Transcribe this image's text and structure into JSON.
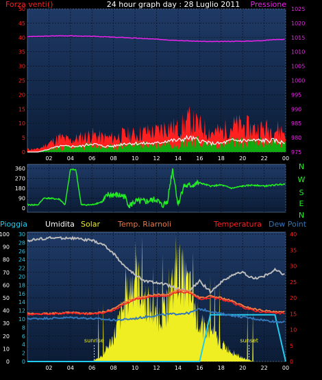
{
  "title": "24 hour graph day : 28 Luglio 2011",
  "colors": {
    "bg": "#000000",
    "plot_top": "#1f3a66",
    "plot_bottom": "#0b1c36",
    "grid": "#000000",
    "red": "#ff2020",
    "white": "#ffffff",
    "green": "#11aa11",
    "magenta": "#ee22ee",
    "brightgreen": "#22ee22",
    "yellow": "#eeee22",
    "gray": "#bbbbbb",
    "orange": "#ee7744",
    "blue": "#3377bb",
    "cyan": "#22ccee",
    "ticks": "#ffffff"
  },
  "time_ticks": [
    "02",
    "04",
    "06",
    "08",
    "10",
    "12",
    "14",
    "16",
    "18",
    "20",
    "22",
    "00"
  ],
  "chart_data": [
    {
      "type": "line",
      "id": "wind-pressure",
      "left_label": "Forza venti()",
      "right_label": "Pressione",
      "left_ticks": [
        "50",
        "45",
        "40",
        "35",
        "30",
        "25",
        "20",
        "15",
        "10",
        "5",
        "0"
      ],
      "right_ticks": [
        "1025",
        "1020",
        "1015",
        "1010",
        "1005",
        "1000",
        "995",
        "990",
        "985",
        "980",
        "975"
      ],
      "ylim_left": [
        0,
        50
      ],
      "ylim_right": [
        975,
        1025
      ],
      "x_hours": [
        0,
        1,
        2,
        3,
        4,
        5,
        6,
        7,
        8,
        9,
        10,
        11,
        12,
        13,
        14,
        15,
        16,
        17,
        18,
        19,
        20,
        21,
        22,
        23,
        24
      ],
      "series": [
        {
          "key": "pressure",
          "axis": "right",
          "values": [
            1015.3,
            1015.4,
            1015.5,
            1015.6,
            1015.6,
            1015.5,
            1015.4,
            1015.3,
            1015.1,
            1015.0,
            1014.8,
            1014.6,
            1014.4,
            1014.2,
            1014.0,
            1013.8,
            1013.7,
            1013.6,
            1013.6,
            1013.7,
            1013.7,
            1013.8,
            1014.0,
            1014.3,
            1014.4
          ]
        },
        {
          "key": "gust",
          "axis": "left",
          "values": [
            1,
            1,
            3,
            5,
            4,
            5,
            6,
            5,
            5,
            6,
            6,
            7,
            7,
            9,
            8,
            11,
            9,
            7,
            7,
            9,
            9,
            8,
            8,
            8,
            7
          ]
        },
        {
          "key": "wind",
          "axis": "left",
          "values": [
            0,
            0,
            1,
            2,
            2,
            2,
            3,
            2,
            2,
            3,
            3,
            3,
            3,
            4,
            4,
            5,
            4,
            3,
            3,
            4,
            4,
            4,
            4,
            4,
            3
          ]
        }
      ]
    },
    {
      "type": "line",
      "id": "wind-direction",
      "compass": [
        "N",
        "W",
        "S",
        "E",
        "N"
      ],
      "y_ticks": [
        "360",
        "270",
        "180",
        "90",
        "0"
      ],
      "ylim": [
        0,
        360
      ],
      "x_hours": [
        0,
        1,
        1.5,
        2,
        3,
        3.5,
        4,
        4.5,
        5,
        5.5,
        6,
        7,
        7.5,
        8,
        9,
        9.5,
        10,
        11,
        12,
        12.5,
        13,
        13.5,
        14,
        14.5,
        15,
        16,
        17,
        18,
        19,
        20,
        21,
        22,
        23,
        24
      ],
      "series": [
        {
          "key": "direction",
          "values": [
            30,
            30,
            90,
            90,
            80,
            30,
            350,
            350,
            30,
            30,
            30,
            60,
            120,
            120,
            110,
            20,
            60,
            60,
            80,
            20,
            60,
            360,
            30,
            200,
            200,
            230,
            200,
            210,
            180,
            200,
            210,
            200,
            210,
            220
          ]
        }
      ]
    },
    {
      "type": "line",
      "id": "rain-temp",
      "legend": [
        "Pioggia",
        "Umidita",
        "Solar",
        "Temp. Riarnoli",
        "Temperatura",
        "Dew Point"
      ],
      "outer_left_ticks": [
        "100",
        "90",
        "80",
        "70",
        "60",
        "50",
        "40",
        "30",
        "20",
        "10",
        "0"
      ],
      "inner_left_ticks": [
        "30",
        "28",
        "26",
        "24",
        "22",
        "20",
        "18",
        "16",
        "14",
        "12",
        "10",
        "8",
        "6",
        "4",
        "2",
        "0"
      ],
      "right_ticks": [
        "40",
        "35",
        "30",
        "25",
        "20",
        "15",
        "10",
        "5",
        "0"
      ],
      "ylim_humidity": [
        0,
        100
      ],
      "ylim_temp": [
        0,
        40
      ],
      "annotations": [
        {
          "text": "sunrise",
          "hour": 6.2
        },
        {
          "text": "sunset",
          "hour": 20.6
        }
      ],
      "x_hours": [
        0,
        1,
        2,
        3,
        4,
        5,
        6,
        7,
        8,
        9,
        10,
        11,
        12,
        13,
        14,
        15,
        16,
        17,
        18,
        19,
        20,
        21,
        22,
        23,
        24
      ],
      "series": [
        {
          "key": "humidity",
          "values": [
            95,
            96,
            97,
            97,
            97,
            96,
            95,
            92,
            85,
            75,
            68,
            63,
            62,
            60,
            57,
            55,
            63,
            55,
            62,
            68,
            70,
            65,
            67,
            72,
            68
          ]
        },
        {
          "key": "temp_riarnoli",
          "values": [
            15.0,
            15.0,
            15.0,
            15.2,
            15.5,
            15.2,
            15.0,
            15.5,
            16.5,
            18.5,
            20.0,
            20.5,
            21.0,
            21.0,
            22.5,
            22.0,
            20.0,
            20.5,
            20.0,
            19.0,
            17.5,
            16.5,
            16.0,
            15.5,
            15.5
          ]
        },
        {
          "key": "temperatura",
          "values": [
            14.8,
            14.9,
            14.9,
            15.0,
            15.3,
            15.0,
            14.9,
            15.2,
            16.0,
            18.0,
            19.5,
            20.0,
            20.5,
            20.5,
            22.0,
            21.5,
            19.5,
            20.0,
            19.5,
            18.5,
            17.0,
            16.0,
            15.5,
            15.2,
            15.0
          ]
        },
        {
          "key": "dew_point",
          "values": [
            13.5,
            13.5,
            13.6,
            13.7,
            13.8,
            13.7,
            13.5,
            13.3,
            13.0,
            13.2,
            13.5,
            14.0,
            14.5,
            14.8,
            15.0,
            15.2,
            16.5,
            15.8,
            15.0,
            14.5,
            14.0,
            13.5,
            13.0,
            12.5,
            12.5
          ]
        },
        {
          "key": "solar",
          "values": [
            0,
            0,
            0,
            0,
            0,
            0,
            0,
            5,
            20,
            45,
            70,
            50,
            35,
            45,
            75,
            60,
            30,
            25,
            15,
            8,
            3,
            0,
            0,
            0,
            0
          ]
        },
        {
          "key": "rain",
          "values": [
            0,
            0,
            0,
            0,
            0,
            0,
            0,
            0,
            0,
            0,
            0,
            0,
            0,
            0,
            0,
            0,
            0,
            11,
            11,
            11,
            11,
            11,
            11,
            11,
            0
          ]
        }
      ]
    }
  ]
}
